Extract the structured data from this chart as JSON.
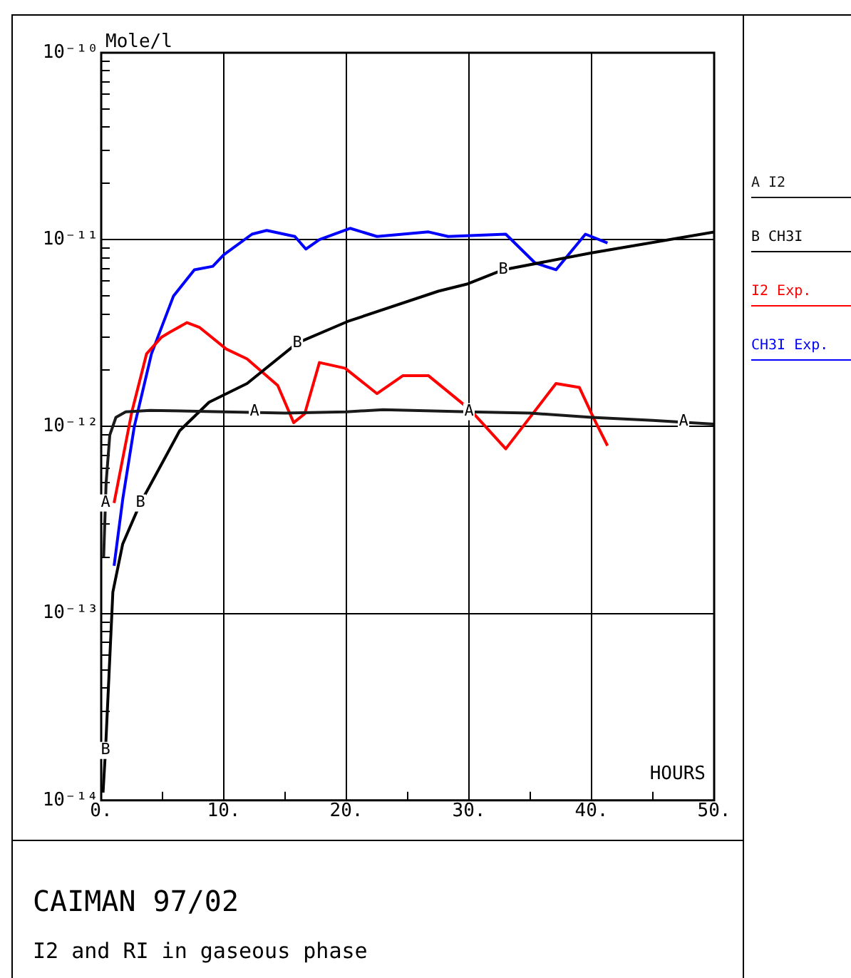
{
  "chart_data": {
    "type": "line",
    "title": "CAIMAN 97/02",
    "subtitle": "I2 and RI in gaseous phase",
    "xlabel": "HOURS",
    "ylabel": "Mole/l",
    "log": "y",
    "grid": true,
    "legend": "right",
    "marker": "none",
    "line_style": "solid",
    "xlim": [
      0,
      50
    ],
    "xticks": [
      {
        "value": 0,
        "label": "0."
      },
      {
        "value": 5,
        "label": null
      },
      {
        "value": 10,
        "label": "10."
      },
      {
        "value": 15,
        "label": null
      },
      {
        "value": 20,
        "label": "20."
      },
      {
        "value": 25,
        "label": null
      },
      {
        "value": 30,
        "label": "30."
      },
      {
        "value": 35,
        "label": null
      },
      {
        "value": 40,
        "label": "40."
      },
      {
        "value": 45,
        "label": null
      },
      {
        "value": 50,
        "label": "50."
      }
    ],
    "ylim": [
      1e-14,
      1e-10
    ],
    "yticks": [
      {
        "value": 1e-14,
        "label": "10⁻¹⁴"
      },
      {
        "value": 2e-14,
        "label": null
      },
      {
        "value": 3e-14,
        "label": null
      },
      {
        "value": 4e-14,
        "label": null
      },
      {
        "value": 5e-14,
        "label": null
      },
      {
        "value": 6e-14,
        "label": null
      },
      {
        "value": 7e-14,
        "label": null
      },
      {
        "value": 8e-14,
        "label": null
      },
      {
        "value": 9e-14,
        "label": null
      },
      {
        "value": 1e-13,
        "label": "10⁻¹³"
      },
      {
        "value": 2e-13,
        "label": null
      },
      {
        "value": 3e-13,
        "label": null
      },
      {
        "value": 4e-13,
        "label": null
      },
      {
        "value": 5e-13,
        "label": null
      },
      {
        "value": 6e-13,
        "label": null
      },
      {
        "value": 7e-13,
        "label": null
      },
      {
        "value": 8e-13,
        "label": null
      },
      {
        "value": 9e-13,
        "label": null
      },
      {
        "value": 1e-12,
        "label": "10⁻¹²"
      },
      {
        "value": 2e-12,
        "label": null
      },
      {
        "value": 3e-12,
        "label": null
      },
      {
        "value": 4e-12,
        "label": null
      },
      {
        "value": 5e-12,
        "label": null
      },
      {
        "value": 6e-12,
        "label": null
      },
      {
        "value": 7e-12,
        "label": null
      },
      {
        "value": 8e-12,
        "label": null
      },
      {
        "value": 9e-12,
        "label": null
      },
      {
        "value": 1e-11,
        "label": "10⁻¹¹"
      },
      {
        "value": 2e-11,
        "label": null
      },
      {
        "value": 3e-11,
        "label": null
      },
      {
        "value": 4e-11,
        "label": null
      },
      {
        "value": 5e-11,
        "label": null
      },
      {
        "value": 6e-11,
        "label": null
      },
      {
        "value": 7e-11,
        "label": null
      },
      {
        "value": 8e-11,
        "label": null
      },
      {
        "value": 9e-11,
        "label": null
      },
      {
        "value": 1e-10,
        "label": "10⁻¹⁰"
      }
    ],
    "series": [
      {
        "name": "A I2",
        "color": "#1a1a1a",
        "x": [
          0.2,
          0.4,
          0.7,
          1.2,
          2,
          4,
          10,
          15,
          20,
          23,
          30,
          35,
          40,
          45,
          50
        ],
        "values": [
          2e-13,
          5e-13,
          9e-13,
          1.12e-12,
          1.2e-12,
          1.22e-12,
          1.2e-12,
          1.18e-12,
          1.2e-12,
          1.23e-12,
          1.2e-12,
          1.18e-12,
          1.12e-12,
          1.08e-12,
          1.03e-12
        ]
      },
      {
        "name": "B CH3I",
        "color": "#000000",
        "x": [
          0.15,
          0.35,
          0.95,
          1.75,
          3.2,
          4.1,
          6.4,
          8.8,
          11.9,
          16,
          20.1,
          27.5,
          29.9,
          32.8,
          40,
          50
        ],
        "values": [
          1.1e-14,
          1.85e-14,
          1.3e-13,
          2.35e-13,
          3.9e-13,
          5e-13,
          9.5e-13,
          1.35e-12,
          1.7e-12,
          2.8e-12,
          3.65e-12,
          5.3e-12,
          5.8e-12,
          6.9e-12,
          8.5e-12,
          1.1e-11
        ]
      },
      {
        "name": "I2 Exp.",
        "color": "#ff0000",
        "x": [
          1.05,
          2.5,
          3.7,
          4.9,
          5.6,
          7,
          8,
          10.2,
          11.9,
          14.4,
          15.7,
          16.6,
          17.8,
          19.9,
          22.5,
          24.6,
          26.7,
          30.1,
          33,
          37.1,
          39,
          40.2,
          41.3
        ],
        "values": [
          3.9e-13,
          1.2e-12,
          2.45e-12,
          3e-12,
          3.2e-12,
          3.6e-12,
          3.4e-12,
          2.6e-12,
          2.3e-12,
          1.66e-12,
          1.05e-12,
          1.17e-12,
          2.2e-12,
          2.05e-12,
          1.5e-12,
          1.87e-12,
          1.87e-12,
          1.23e-12,
          7.6e-13,
          1.7e-12,
          1.62e-12,
          1.1e-12,
          7.9e-13
        ]
      },
      {
        "name": "CH3I Exp.",
        "color": "#0000ff",
        "x": [
          1.05,
          1.76,
          2.7,
          4.1,
          5.9,
          7.6,
          9.1,
          10,
          12.3,
          13.5,
          15.8,
          16.7,
          17.8,
          20.3,
          22.5,
          26.7,
          28.3,
          33,
          35.4,
          37.1,
          39.5,
          41.3
        ],
        "values": [
          1.8e-13,
          4.1e-13,
          1e-12,
          2.45e-12,
          5e-12,
          6.9e-12,
          7.2e-12,
          8.3e-12,
          1.07e-11,
          1.12e-11,
          1.04e-11,
          8.9e-12,
          1e-11,
          1.15e-11,
          1.04e-11,
          1.1e-11,
          1.04e-11,
          1.07e-11,
          7.5e-12,
          6.9e-12,
          1.07e-11,
          9.6e-12
        ]
      }
    ],
    "annotations": [
      {
        "text": "A",
        "x": 0.35,
        "y": 3.9e-13
      },
      {
        "text": "A",
        "x": 12.5,
        "y": 1.2e-12
      },
      {
        "text": "A",
        "x": 30,
        "y": 1.2e-12
      },
      {
        "text": "A",
        "x": 47.5,
        "y": 1.06e-12
      },
      {
        "text": "B",
        "x": 0.35,
        "y": 1.85e-14
      },
      {
        "text": "B",
        "x": 3.2,
        "y": 3.9e-13
      },
      {
        "text": "B",
        "x": 16,
        "y": 2.8e-12
      },
      {
        "text": "B",
        "x": 32.8,
        "y": 6.9e-12
      }
    ]
  }
}
